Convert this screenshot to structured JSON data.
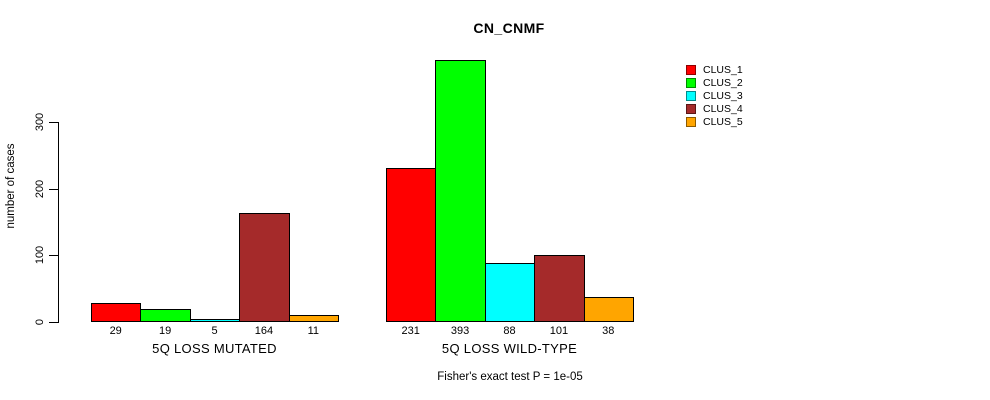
{
  "page": {
    "background": "#FFFFFF"
  },
  "chart_data": {
    "type": "bar",
    "title": "CN_CNMF",
    "ylabel": "number of cases",
    "xlabel": "",
    "yticks": [
      0,
      100,
      200,
      300
    ],
    "ylim": [
      0,
      400
    ],
    "grid": false,
    "legend_position": "top-right",
    "bar_border_color": "#000000",
    "bar_value_labels_shown": true,
    "categories": [
      "5Q LOSS MUTATED",
      "5Q LOSS WILD-TYPE"
    ],
    "series": [
      {
        "name": "CLUS_1",
        "color": "#FF0000",
        "values": [
          29,
          231
        ]
      },
      {
        "name": "CLUS_2",
        "color": "#00FF00",
        "values": [
          19,
          393
        ]
      },
      {
        "name": "CLUS_3",
        "color": "#00FFFF",
        "values": [
          5,
          88
        ]
      },
      {
        "name": "CLUS_4",
        "color": "#A52A2A",
        "values": [
          164,
          101
        ]
      },
      {
        "name": "CLUS_5",
        "color": "#FFA500",
        "values": [
          11,
          38
        ]
      }
    ],
    "footer": "Fisher's exact test P = 1e-05"
  },
  "icons": {
    "legend_swatch": "color-swatch-icon"
  }
}
